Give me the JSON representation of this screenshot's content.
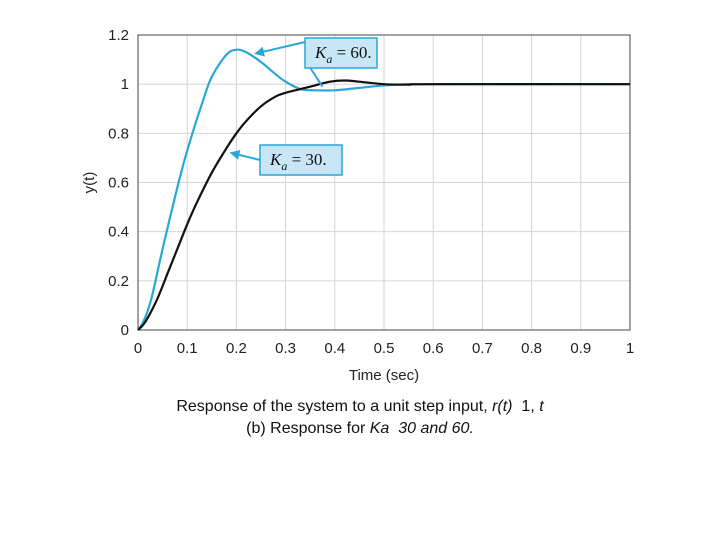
{
  "chart_data": {
    "type": "line",
    "xlabel": "Time (sec)",
    "ylabel": "y(t)",
    "xlim": [
      0,
      1
    ],
    "ylim": [
      0,
      1.2
    ],
    "x_ticks": [
      "0",
      "0.1",
      "0.2",
      "0.3",
      "0.4",
      "0.5",
      "0.6",
      "0.7",
      "0.8",
      "0.9",
      "1"
    ],
    "y_ticks": [
      "0",
      "0.2",
      "0.4",
      "0.6",
      "0.8",
      "1",
      "1.2"
    ],
    "grid": true,
    "series": [
      {
        "label": "Ka = 60.",
        "label_main": "K",
        "label_sub": "a",
        "label_rest": " = 60.",
        "color": "#29a8d8",
        "x": [
          0,
          0.01,
          0.02,
          0.03,
          0.05,
          0.08,
          0.1,
          0.13,
          0.15,
          0.18,
          0.2,
          0.22,
          0.25,
          0.28,
          0.3,
          0.33,
          0.36,
          0.4,
          0.45,
          0.5,
          0.55,
          0.6,
          1.0
        ],
        "y": [
          0,
          0.03,
          0.08,
          0.15,
          0.33,
          0.58,
          0.73,
          0.92,
          1.03,
          1.12,
          1.14,
          1.13,
          1.09,
          1.04,
          1.01,
          0.98,
          0.975,
          0.975,
          0.985,
          0.995,
          1.0,
          1.0,
          1.0
        ]
      },
      {
        "label": "Ka = 30.",
        "label_main": "K",
        "label_sub": "a",
        "label_rest": " = 30.",
        "color": "#111111",
        "x": [
          0,
          0.01,
          0.02,
          0.04,
          0.06,
          0.08,
          0.1,
          0.12,
          0.15,
          0.18,
          0.2,
          0.22,
          0.25,
          0.28,
          0.3,
          0.33,
          0.36,
          0.39,
          0.42,
          0.45,
          0.5,
          0.55,
          0.6,
          1.0
        ],
        "y": [
          0,
          0.02,
          0.05,
          0.13,
          0.23,
          0.33,
          0.43,
          0.52,
          0.64,
          0.74,
          0.8,
          0.85,
          0.91,
          0.95,
          0.965,
          0.98,
          0.995,
          1.01,
          1.015,
          1.01,
          1.0,
          0.998,
          1.0,
          1.0
        ]
      }
    ]
  },
  "caption": {
    "line1_prefix": "Response of the system to a unit step input, ",
    "line1_r": "r(t)",
    "line1_mid": "  1, ",
    "line1_t": "t",
    "line2_prefix": "(b) Response for ",
    "line2_em": "Ka  30 and 60."
  },
  "colors": {
    "grid": "#d4d4d4",
    "callout_fill": "#c8e6f5",
    "callout_border": "#29a8d8"
  }
}
